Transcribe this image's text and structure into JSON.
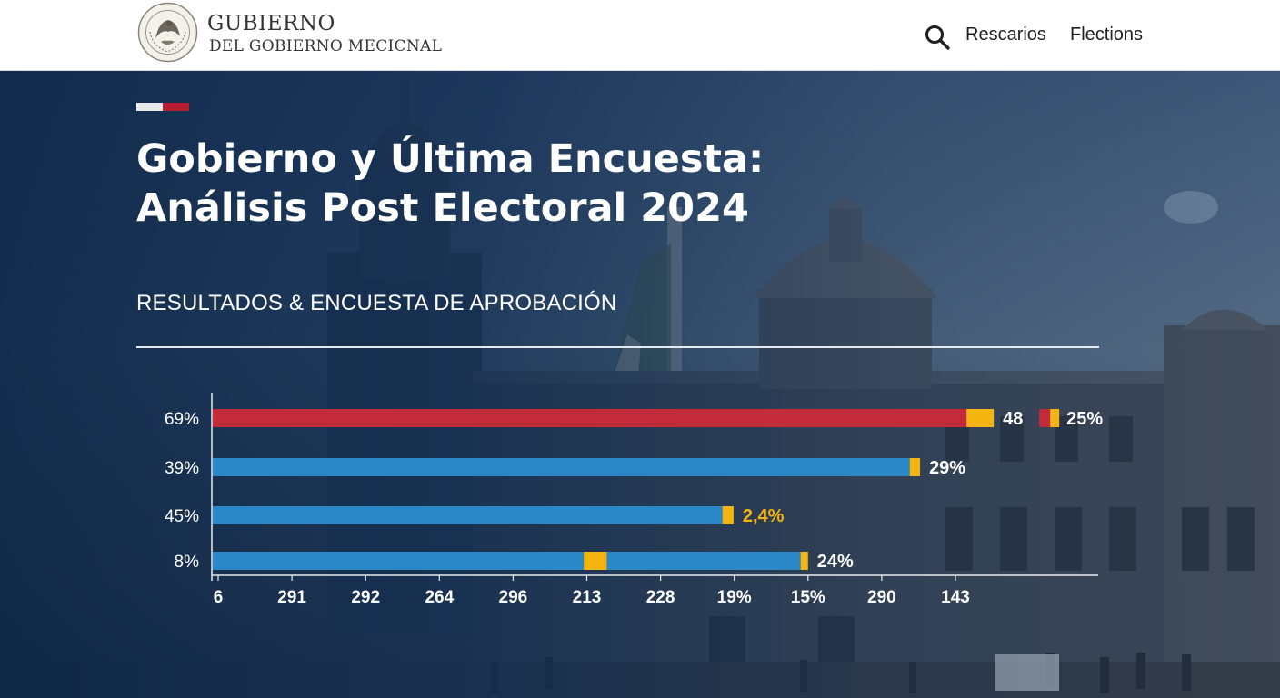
{
  "header": {
    "brand_line1": "GUBIERNO",
    "brand_line2": "DEL GOBIERNO MECICNAL",
    "nav": [
      {
        "label": "Rescarios"
      },
      {
        "label": "Flections"
      }
    ]
  },
  "hero": {
    "title_line1": "Gobierno y Última Encuesta:",
    "title_line2": "Análisis Post Electoral 2024",
    "subtitle": "RESULTADOS & ENCUESTA DE APROBACIÓN"
  },
  "colors": {
    "red": "#c42b3a",
    "blue": "#2a88c8",
    "yellow": "#f5b511",
    "accent_red": "#b22030"
  },
  "chart_data": {
    "type": "bar",
    "orientation": "horizontal",
    "categories": [
      "69%",
      "39%",
      "45%",
      "8%"
    ],
    "x_tick_labels": [
      "6",
      "291",
      "292",
      "264",
      "296",
      "213",
      "228",
      "19%",
      "15%",
      "290",
      "143"
    ],
    "bars": [
      {
        "category": "69%",
        "color": "red",
        "main_end_tick": 10.15,
        "cap_end_tick": 10.52,
        "label": "48",
        "extra_label": "25%"
      },
      {
        "category": "39%",
        "color": "blue",
        "main_end_tick": 9.38,
        "cap_end_tick": 9.52,
        "label": "29%"
      },
      {
        "category": "45%",
        "color": "blue",
        "main_end_tick": 6.84,
        "cap_end_tick": 6.99,
        "label": "2,4%"
      },
      {
        "category": "8%",
        "color": "blue",
        "main_end_tick": 7.9,
        "cap_end_tick": 8.0,
        "inner_cap_tick": [
          4.96,
          5.27
        ],
        "label": "24%"
      }
    ]
  }
}
